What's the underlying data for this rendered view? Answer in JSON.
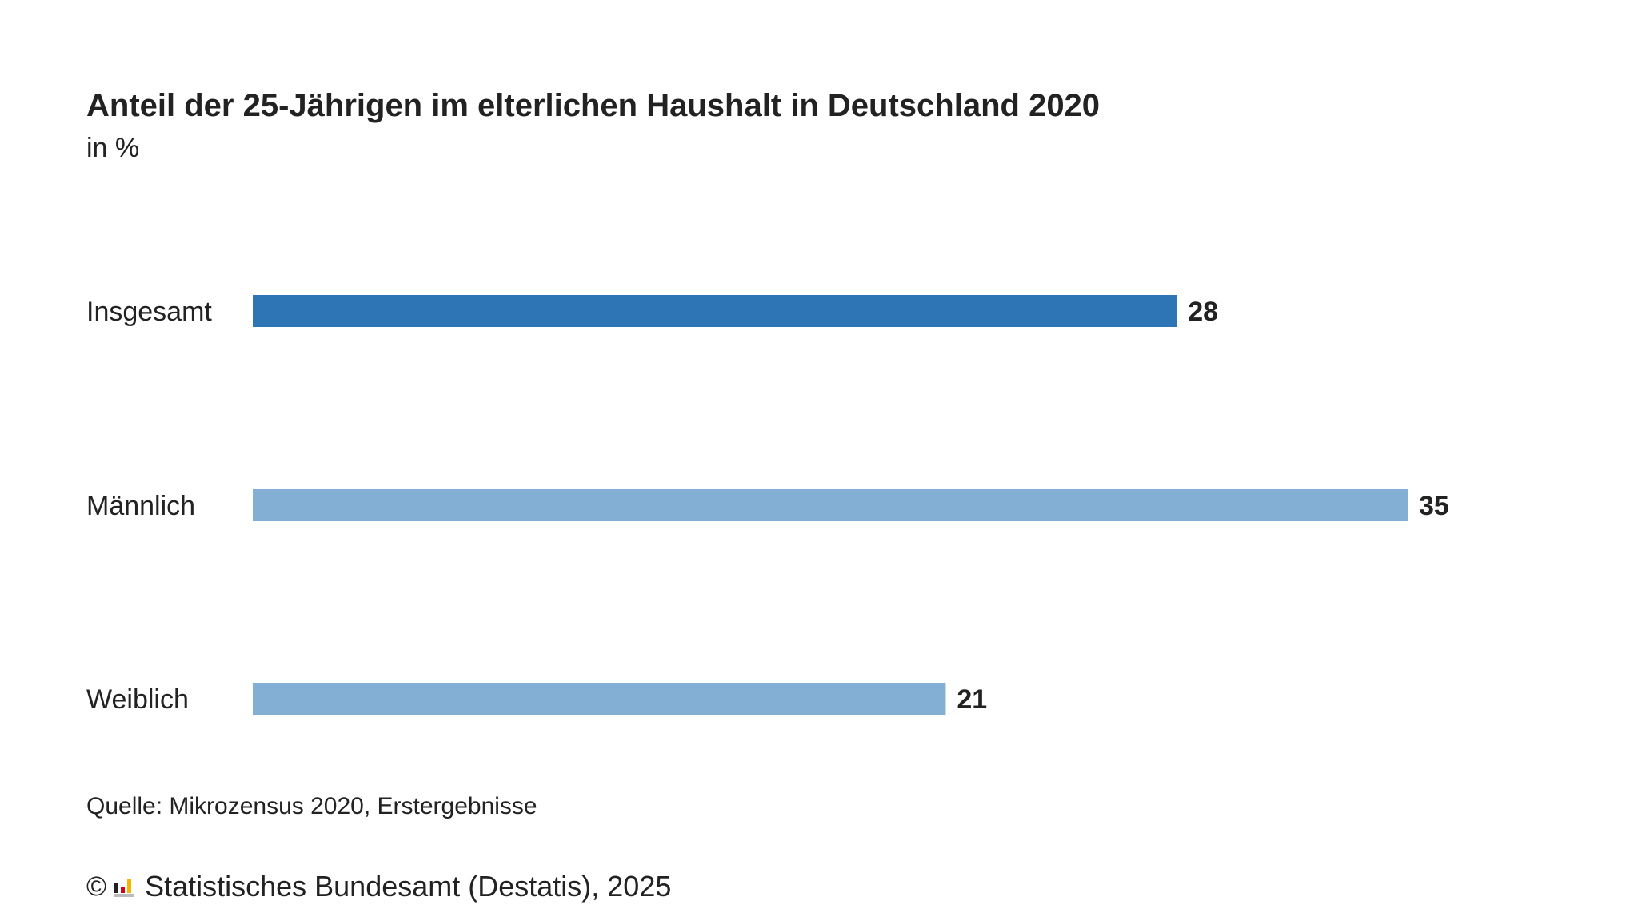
{
  "chart_data": {
    "type": "bar",
    "orientation": "horizontal",
    "title": "Anteil der 25-Jährigen im elterlichen Haushalt in Deutschland 2020",
    "subtitle": "in %",
    "categories": [
      "Insgesamt",
      "Männlich",
      "Weiblich"
    ],
    "values": [
      28,
      35,
      21
    ],
    "colors": [
      "#2e75b6",
      "#82afd3",
      "#82afd3"
    ],
    "xlim": [
      0,
      35
    ],
    "grid": false,
    "legend": "none",
    "data_labels": true
  },
  "footer": {
    "source": "Quelle: Mikrozensus 2020, Erstergebnisse",
    "copyright_symbol": "©",
    "logo_icon": "destatis-logo-icon",
    "credit": "Statistisches Bundesamt (Destatis), 2025"
  }
}
